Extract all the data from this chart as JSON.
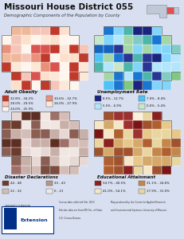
{
  "title": "Missouri House District 055",
  "subtitle": "Demographic Components of the Population by County",
  "bg_color": "#d8dff0",
  "title_fontsize": 7.5,
  "subtitle_fontsize": 3.8,
  "map1_title": "Adult Obesity",
  "map2_title": "Unemployment Rate",
  "map3_title": "Disaster Declarations",
  "map4_title": "Educational Attainment",
  "map1_colors": [
    "#c0392b",
    "#c0392b",
    "#d9534f",
    "#e8907a",
    "#e8907a",
    "#f0b89a",
    "#f5c6b8",
    "#f5c6b8",
    "#fde0cc",
    "#fde0cc",
    "#fde8d8",
    "#fef5ee",
    "#fef5ee",
    "#fde8d8",
    "#f0b89a"
  ],
  "map2_colors": [
    "#1a237e",
    "#1a237e",
    "#283593",
    "#1565c0",
    "#1976d2",
    "#4fc3f7",
    "#81d4fa",
    "#81d4fa",
    "#b3e5fc",
    "#b3e5fc",
    "#c8e6c9",
    "#a5d6a7",
    "#81c784",
    "#4db6ac",
    "#80cbc4"
  ],
  "map3_colors": [
    "#5d2e22",
    "#6d3b2e",
    "#7d4a3c",
    "#8b5e54",
    "#9e7068",
    "#b5968a",
    "#c8b0a8",
    "#c8b0a8",
    "#d4bdb6",
    "#d4bdb6",
    "#e8d8d4",
    "#f0e6e2",
    "#f0e6e2",
    "#e8d8d4",
    "#d4bdb6"
  ],
  "map4_colors": [
    "#7b1515",
    "#8b2020",
    "#9e3030",
    "#a0522d",
    "#b06030",
    "#c4874a",
    "#d4a96a",
    "#d4a96a",
    "#e8c88a",
    "#e8d5a0",
    "#f5e6c8",
    "#f5e6c8",
    "#faf0dc",
    "#e8d5a0",
    "#d4a96a"
  ],
  "map1_legend": [
    {
      "label": "32.8% - 34.2%",
      "color": "#c0392b"
    },
    {
      "label": "30.6% - 32.7%",
      "color": "#e8907a"
    },
    {
      "label": "28.0% - 29.5%",
      "color": "#f5c6b8"
    },
    {
      "label": "26.0% - 27.9%",
      "color": "#fde8d8"
    },
    {
      "label": "24.0% - 25.9%",
      "color": "#fef5ee"
    }
  ],
  "map2_legend": [
    {
      "label": "8.5% - 12.7%",
      "color": "#1a237e"
    },
    {
      "label": "7.0% - 8.4%",
      "color": "#4fc3f7"
    },
    {
      "label": "5.5% - 6.9%",
      "color": "#b3e5fc"
    },
    {
      "label": "0.0% - 5.4%",
      "color": "#c8e6c9"
    }
  ],
  "map3_legend": [
    {
      "label": "44 - 48",
      "color": "#6d3b2e"
    },
    {
      "label": "33 - 43",
      "color": "#b5968a"
    },
    {
      "label": "22 - 32",
      "color": "#d4bdb6"
    },
    {
      "label": "0 - 21",
      "color": "#f0e6e2"
    }
  ],
  "map4_legend": [
    {
      "label": "34.7% - 40.5%",
      "color": "#8b2020"
    },
    {
      "label": "31.1% - 34.6%",
      "color": "#c4874a"
    },
    {
      "label": "41.0% - 54.1%",
      "color": "#f5e6c8"
    },
    {
      "label": "17.9% - 31.0%",
      "color": "#e8d5a0"
    }
  ],
  "footer_bg": "#d8dff0",
  "ext_blue": "#003087"
}
